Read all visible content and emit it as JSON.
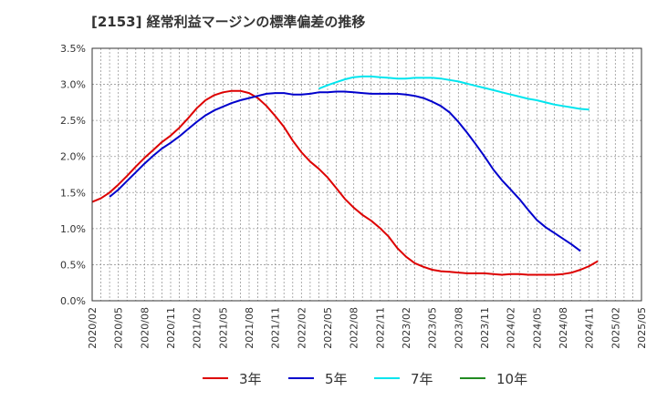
{
  "chart_data": {
    "type": "line",
    "title": "[2153]  経常利益マージンの標準偏差の推移",
    "xlabel": "",
    "ylabel": "",
    "x_ticks": [
      "2020/02",
      "2020/05",
      "2020/08",
      "2020/11",
      "2021/02",
      "2021/05",
      "2021/08",
      "2021/11",
      "2022/02",
      "2022/05",
      "2022/08",
      "2022/11",
      "2023/02",
      "2023/05",
      "2023/08",
      "2023/11",
      "2024/02",
      "2024/05",
      "2024/08",
      "2024/11",
      "2025/02",
      "2025/05"
    ],
    "y_ticks": [
      "0.0%",
      "0.5%",
      "1.0%",
      "1.5%",
      "2.0%",
      "2.5%",
      "3.0%",
      "3.5%"
    ],
    "ylim": [
      0,
      3.5
    ],
    "y_unit": "%",
    "grid": true,
    "legend_position": "bottom",
    "series": [
      {
        "name": "3年",
        "color": "#dd0000",
        "start": "2020/02",
        "values": [
          1.37,
          1.42,
          1.5,
          1.61,
          1.73,
          1.86,
          1.98,
          2.09,
          2.2,
          2.29,
          2.4,
          2.53,
          2.67,
          2.78,
          2.85,
          2.89,
          2.91,
          2.91,
          2.88,
          2.81,
          2.7,
          2.56,
          2.41,
          2.22,
          2.06,
          1.93,
          1.83,
          1.71,
          1.56,
          1.41,
          1.29,
          1.19,
          1.11,
          1.01,
          0.89,
          0.73,
          0.61,
          0.52,
          0.47,
          0.43,
          0.41,
          0.4,
          0.39,
          0.38,
          0.38,
          0.38,
          0.37,
          0.36,
          0.37,
          0.37,
          0.36,
          0.36,
          0.36,
          0.36,
          0.37,
          0.39,
          0.43,
          0.48,
          0.55
        ]
      },
      {
        "name": "5年",
        "color": "#0000cc",
        "start": "2020/04",
        "values": [
          1.44,
          1.54,
          1.66,
          1.78,
          1.9,
          2.01,
          2.11,
          2.19,
          2.28,
          2.38,
          2.48,
          2.57,
          2.64,
          2.69,
          2.74,
          2.78,
          2.81,
          2.84,
          2.87,
          2.88,
          2.88,
          2.86,
          2.86,
          2.87,
          2.89,
          2.89,
          2.9,
          2.9,
          2.89,
          2.88,
          2.87,
          2.87,
          2.87,
          2.87,
          2.86,
          2.84,
          2.81,
          2.76,
          2.7,
          2.61,
          2.48,
          2.33,
          2.17,
          2.0,
          1.82,
          1.67,
          1.54,
          1.41,
          1.26,
          1.12,
          1.02,
          0.94,
          0.86,
          0.78,
          0.69
        ]
      },
      {
        "name": "7年",
        "color": "#00e5ee",
        "start": "2022/04",
        "values": [
          2.94,
          2.99,
          3.03,
          3.07,
          3.1,
          3.11,
          3.11,
          3.1,
          3.09,
          3.08,
          3.08,
          3.09,
          3.09,
          3.09,
          3.08,
          3.06,
          3.04,
          3.01,
          2.98,
          2.95,
          2.92,
          2.89,
          2.86,
          2.83,
          2.8,
          2.78,
          2.75,
          2.72,
          2.7,
          2.68,
          2.66,
          2.65
        ]
      },
      {
        "name": "10年",
        "color": "#228b22",
        "start": "",
        "values": []
      }
    ]
  }
}
